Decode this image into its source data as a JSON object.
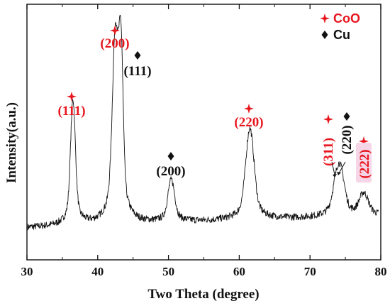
{
  "chart_data": {
    "type": "line",
    "xlabel": "Two Theta (degree)",
    "ylabel": "Intensity(a.u.)",
    "xlim": [
      30,
      80
    ],
    "x_ticks": [
      "30",
      "40",
      "50",
      "60",
      "70",
      "80"
    ],
    "y_ticks_labeled": false,
    "grid": false,
    "colors": {
      "line": "#111111",
      "coo": "#e8161e",
      "cu": "#111111",
      "highlight": "#f5d5e6"
    },
    "legend": {
      "placement": "top-right",
      "entries": [
        {
          "marker": "red-cross-star",
          "label": "CoO"
        },
        {
          "marker": "black-diamond",
          "label": "Cu"
        }
      ]
    },
    "baseline": 0.05,
    "noise": 0.035,
    "peaks": [
      {
        "x": 36.5,
        "height": 0.63,
        "width": 0.32
      },
      {
        "x": 42.5,
        "height": 0.92,
        "width": 0.4
      },
      {
        "x": 43.3,
        "height": 0.78,
        "width": 0.28
      },
      {
        "x": 50.4,
        "height": 0.21,
        "width": 0.45
      },
      {
        "x": 61.5,
        "height": 0.46,
        "width": 0.55
      },
      {
        "x": 73.9,
        "height": 0.2,
        "width": 0.6
      },
      {
        "x": 74.5,
        "height": 0.1,
        "width": 0.5
      },
      {
        "x": 77.6,
        "height": 0.11,
        "width": 0.6
      }
    ],
    "annotations": [
      {
        "phase": "CoO",
        "label": "(111)",
        "x": 36.5
      },
      {
        "phase": "CoO",
        "label": "(200)",
        "x": 42.4
      },
      {
        "phase": "Cu",
        "label": "(111)",
        "x": 45.6
      },
      {
        "phase": "Cu",
        "label": "(200)",
        "x": 50.4
      },
      {
        "phase": "CoO",
        "label": "(220)",
        "x": 61.5
      },
      {
        "phase": "CoO",
        "label": "(311)",
        "x": 73.2
      },
      {
        "phase": "Cu",
        "label": "(220)",
        "x": 75.5
      },
      {
        "phase": "CoO",
        "label": "(222)",
        "x": 77.6
      }
    ]
  }
}
